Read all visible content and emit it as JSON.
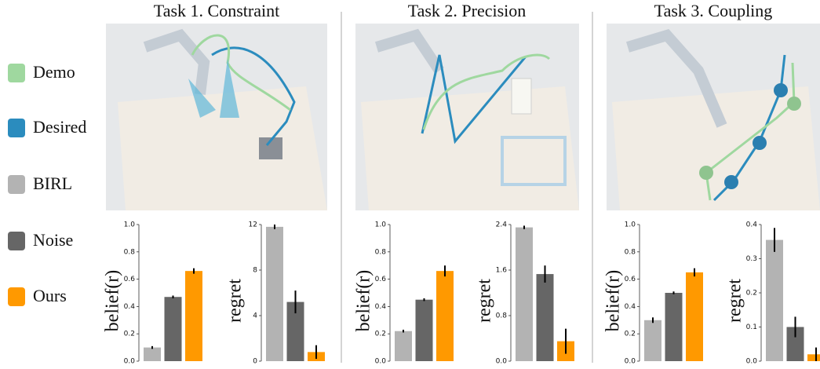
{
  "tasks": [
    {
      "title": "Task 1. Constraint"
    },
    {
      "title": "Task 2. Precision"
    },
    {
      "title": "Task 3. Coupling"
    }
  ],
  "legend": [
    {
      "label": "Demo",
      "color": "#9fd89f"
    },
    {
      "label": "Desired",
      "color": "#2b8cbe"
    },
    {
      "label": "BIRL",
      "color": "#b3b3b3"
    },
    {
      "label": "Noise",
      "color": "#666666"
    },
    {
      "label": "Ours",
      "color": "#ff9900"
    }
  ],
  "chart_data": [
    {
      "type": "bar",
      "y_label": "belief(r)",
      "categories": [
        null,
        null,
        null
      ],
      "values": [
        0.1,
        0.47,
        0.66
      ],
      "errors": [
        0.01,
        0.01,
        0.02
      ],
      "colors": [
        "#b3b3b3",
        "#666666",
        "#ff9900"
      ],
      "ylim": [
        0,
        1.0
      ],
      "yticks": [
        {
          "value": 0,
          "label": "0.0"
        },
        0.2,
        0.4,
        0.6,
        0.8,
        {
          "value": 1,
          "label": "1.0"
        }
      ]
    },
    {
      "type": "bar",
      "y_label": "regret",
      "categories": [
        null,
        null,
        null
      ],
      "values": [
        11.8,
        5.2,
        0.8
      ],
      "errors": [
        0.2,
        1.0,
        0.6
      ],
      "colors": [
        "#b3b3b3",
        "#666666",
        "#ff9900"
      ],
      "ylim": [
        0,
        12
      ],
      "yticks": [
        0,
        4,
        8,
        12
      ]
    },
    {
      "type": "bar",
      "y_label": "belief(r)",
      "categories": [
        null,
        null,
        null
      ],
      "values": [
        0.22,
        0.45,
        0.66
      ],
      "errors": [
        0.01,
        0.01,
        0.04
      ],
      "colors": [
        "#b3b3b3",
        "#666666",
        "#ff9900"
      ],
      "ylim": [
        0,
        1.0
      ],
      "yticks": [
        {
          "value": 0,
          "label": "0.0"
        },
        0.2,
        0.4,
        0.6,
        0.8,
        {
          "value": 1,
          "label": "1.0"
        }
      ]
    },
    {
      "type": "bar",
      "y_label": "regret",
      "categories": [
        null,
        null,
        null
      ],
      "values": [
        2.35,
        1.53,
        0.35
      ],
      "errors": [
        0.03,
        0.15,
        0.22
      ],
      "colors": [
        "#b3b3b3",
        "#666666",
        "#ff9900"
      ],
      "ylim": [
        0,
        2.4
      ],
      "yticks": [
        {
          "value": 0,
          "label": "0.0"
        },
        0.8,
        1.6,
        2.4
      ]
    },
    {
      "type": "bar",
      "y_label": "belief(r)",
      "categories": [
        null,
        null,
        null
      ],
      "values": [
        0.3,
        0.5,
        0.65
      ],
      "errors": [
        0.02,
        0.01,
        0.03
      ],
      "colors": [
        "#b3b3b3",
        "#666666",
        "#ff9900"
      ],
      "ylim": [
        0,
        1.0
      ],
      "yticks": [
        {
          "value": 0,
          "label": "0.0"
        },
        0.2,
        0.4,
        0.6,
        0.8,
        {
          "value": 1,
          "label": "1.0"
        }
      ]
    },
    {
      "type": "bar",
      "y_label": "regret",
      "categories": [
        null,
        null,
        null
      ],
      "values": [
        0.355,
        0.1,
        0.02
      ],
      "errors": [
        0.035,
        0.03,
        0.02
      ],
      "colors": [
        "#b3b3b3",
        "#666666",
        "#ff9900"
      ],
      "ylim": [
        0,
        0.4
      ],
      "yticks": [
        {
          "value": 0,
          "label": "0.0"
        },
        0.1,
        0.2,
        0.3,
        0.4
      ]
    }
  ]
}
